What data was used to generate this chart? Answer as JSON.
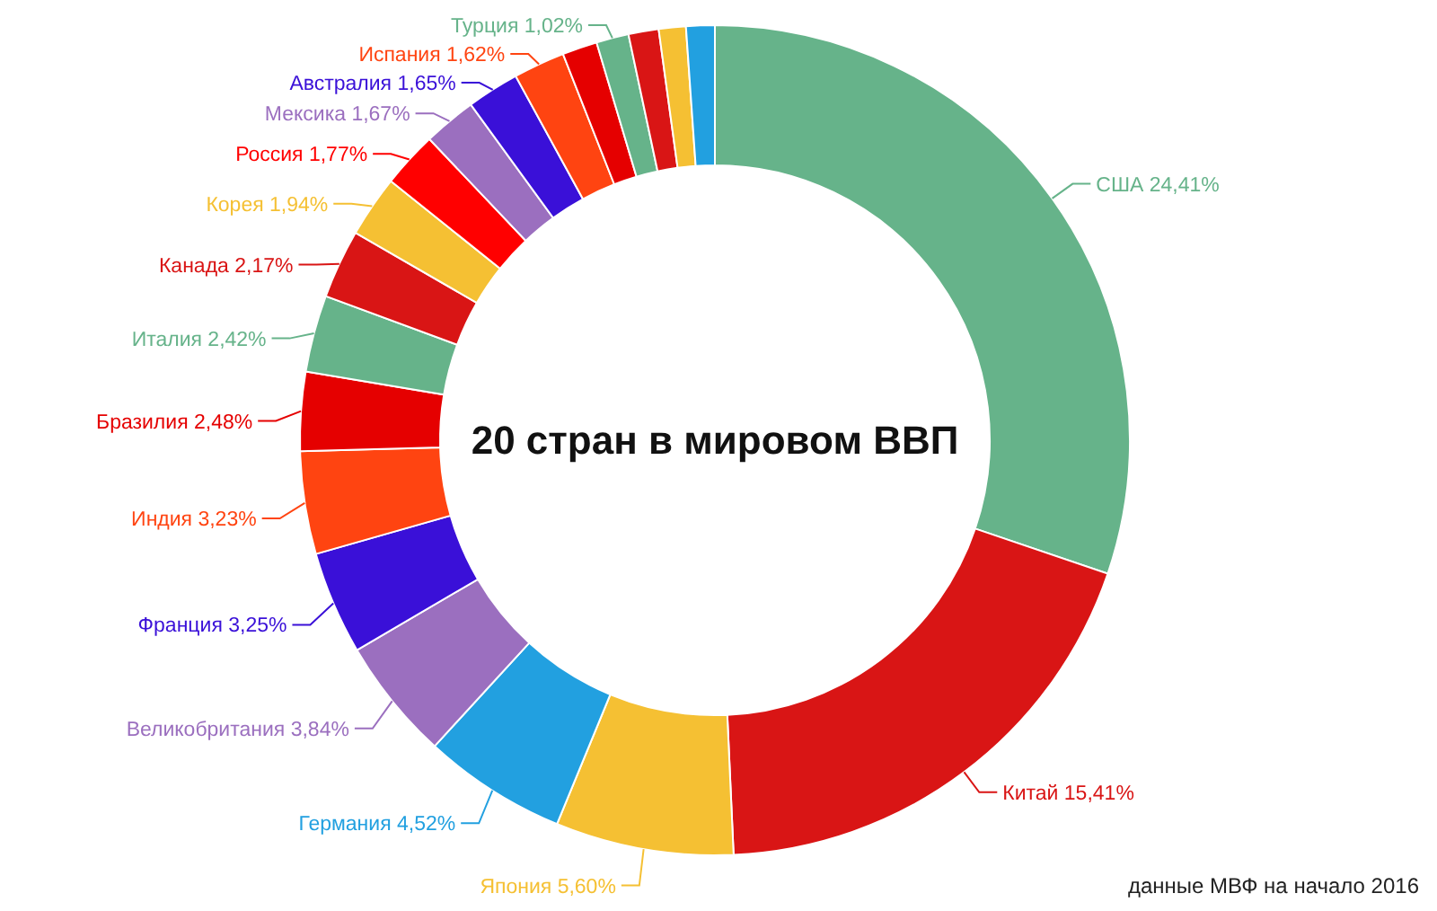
{
  "chart_data": {
    "type": "donut",
    "title": "20 стран в мировом ВВП",
    "categories": [
      "США",
      "Китай",
      "Япония",
      "Германия",
      "Великобритания",
      "Франция",
      "Индия",
      "Бразилия",
      "Италия",
      "Канада",
      "Корея",
      "Россия",
      "Мексика",
      "Австралия",
      "Испания",
      null,
      "Турция",
      null,
      null,
      null
    ],
    "values": [
      24.41,
      15.41,
      5.6,
      4.52,
      3.84,
      3.25,
      3.23,
      2.48,
      2.42,
      2.17,
      1.94,
      1.77,
      1.67,
      1.65,
      1.62,
      1.1,
      1.02,
      0.95,
      0.85,
      0.9
    ],
    "value_labels": [
      "24,41%",
      "15,41%",
      "5,60%",
      "4,52%",
      "3,84%",
      "3,25%",
      "3,23%",
      "2,48%",
      "2,42%",
      "2,17%",
      "1,94%",
      "1,77%",
      "1,67%",
      "1,65%",
      "1,62%",
      null,
      "1,02%",
      null,
      null,
      null
    ],
    "colors": [
      "#66b38a",
      "#d91515",
      "#f5c033",
      "#22a0e0",
      "#9b6fbf",
      "#3a10d8",
      "#ff4411",
      "#e50000",
      "#66b38a",
      "#d91515",
      "#f5c033",
      "#ff0000",
      "#9b6fbf",
      "#3a10d8",
      "#ff4411",
      "#e50000",
      "#66b38a",
      "#d91515",
      "#f5c033",
      "#22a0e0"
    ],
    "annotations": [
      "данные МВФ на начало 2016"
    ]
  }
}
